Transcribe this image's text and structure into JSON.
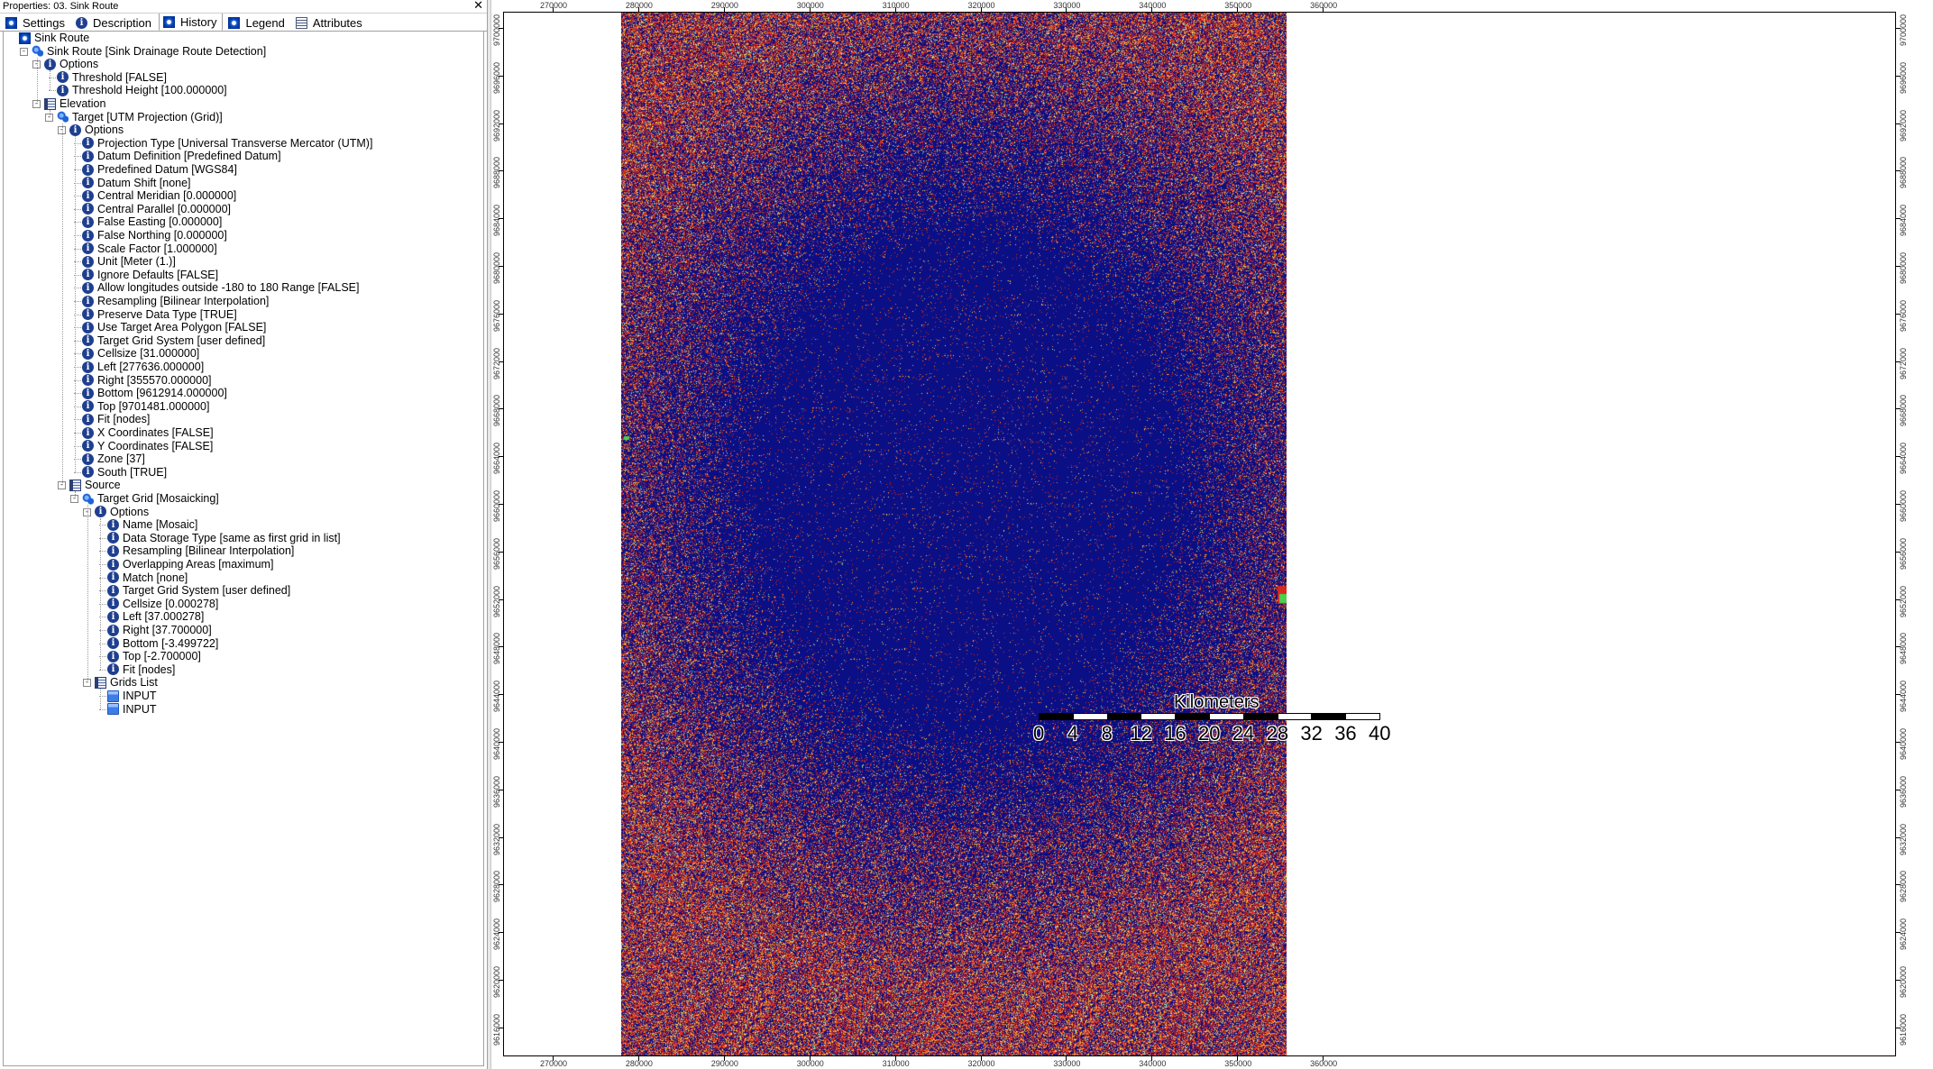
{
  "window": {
    "title": "Properties: 03. Sink Route",
    "close_glyph": "✕"
  },
  "tabs": [
    {
      "label": "Settings",
      "icon": "settings-icon"
    },
    {
      "label": "Description",
      "icon": "info-icon"
    },
    {
      "label": "History",
      "icon": "history-icon",
      "active": true
    },
    {
      "label": "Legend",
      "icon": "legend-icon"
    },
    {
      "label": "Attributes",
      "icon": "table-icon"
    }
  ],
  "tree": [
    {
      "label": "Sink Route",
      "icon": "root",
      "depth": 0
    },
    {
      "label": "Sink Route [Sink Drainage Route Detection]",
      "icon": "tool",
      "depth": 1,
      "expander": "-"
    },
    {
      "label": "Options",
      "icon": "info",
      "depth": 2,
      "expander": "-"
    },
    {
      "label": "Threshold [FALSE]",
      "icon": "info",
      "depth": 3
    },
    {
      "label": "Threshold Height [100.000000]",
      "icon": "info",
      "depth": 3
    },
    {
      "label": "Elevation",
      "icon": "grid",
      "depth": 2,
      "expander": "-"
    },
    {
      "label": "Target [UTM Projection (Grid)]",
      "icon": "tool",
      "depth": 3,
      "expander": "-"
    },
    {
      "label": "Options",
      "icon": "info",
      "depth": 4,
      "expander": "-"
    },
    {
      "label": "Projection Type [Universal Transverse Mercator (UTM)]",
      "icon": "info",
      "depth": 5
    },
    {
      "label": "Datum Definition [Predefined Datum]",
      "icon": "info",
      "depth": 5
    },
    {
      "label": "Predefined Datum [WGS84]",
      "icon": "info",
      "depth": 5
    },
    {
      "label": "Datum Shift [none]",
      "icon": "info",
      "depth": 5
    },
    {
      "label": "Central Meridian [0.000000]",
      "icon": "info",
      "depth": 5
    },
    {
      "label": "Central Parallel [0.000000]",
      "icon": "info",
      "depth": 5
    },
    {
      "label": "False Easting [0.000000]",
      "icon": "info",
      "depth": 5
    },
    {
      "label": "False Northing [0.000000]",
      "icon": "info",
      "depth": 5
    },
    {
      "label": "Scale Factor [1.000000]",
      "icon": "info",
      "depth": 5
    },
    {
      "label": "Unit [Meter (1.)]",
      "icon": "info",
      "depth": 5
    },
    {
      "label": "Ignore Defaults [FALSE]",
      "icon": "info",
      "depth": 5
    },
    {
      "label": "Allow longitudes outside -180 to 180 Range [FALSE]",
      "icon": "info",
      "depth": 5
    },
    {
      "label": "Resampling [Bilinear Interpolation]",
      "icon": "info",
      "depth": 5
    },
    {
      "label": "Preserve Data Type [TRUE]",
      "icon": "info",
      "depth": 5
    },
    {
      "label": "Use Target Area Polygon [FALSE]",
      "icon": "info",
      "depth": 5
    },
    {
      "label": "Target Grid System [user defined]",
      "icon": "info",
      "depth": 5
    },
    {
      "label": "Cellsize [31.000000]",
      "icon": "info",
      "depth": 5
    },
    {
      "label": "Left [277636.000000]",
      "icon": "info",
      "depth": 5
    },
    {
      "label": "Right [355570.000000]",
      "icon": "info",
      "depth": 5
    },
    {
      "label": "Bottom [9612914.000000]",
      "icon": "info",
      "depth": 5
    },
    {
      "label": "Top [9701481.000000]",
      "icon": "info",
      "depth": 5
    },
    {
      "label": "Fit [nodes]",
      "icon": "info",
      "depth": 5
    },
    {
      "label": "X Coordinates [FALSE]",
      "icon": "info",
      "depth": 5
    },
    {
      "label": "Y Coordinates [FALSE]",
      "icon": "info",
      "depth": 5
    },
    {
      "label": "Zone [37]",
      "icon": "info",
      "depth": 5
    },
    {
      "label": "South [TRUE]",
      "icon": "info",
      "depth": 5
    },
    {
      "label": "Source",
      "icon": "grid",
      "depth": 4,
      "expander": "-"
    },
    {
      "label": "Target Grid [Mosaicking]",
      "icon": "tool",
      "depth": 5,
      "expander": "-"
    },
    {
      "label": "Options",
      "icon": "info",
      "depth": 6,
      "expander": "-"
    },
    {
      "label": "Name [Mosaic]",
      "icon": "info",
      "depth": 7
    },
    {
      "label": "Data Storage Type [same as first grid in list]",
      "icon": "info",
      "depth": 7
    },
    {
      "label": "Resampling [Bilinear Interpolation]",
      "icon": "info",
      "depth": 7
    },
    {
      "label": "Overlapping Areas [maximum]",
      "icon": "info",
      "depth": 7
    },
    {
      "label": "Match [none]",
      "icon": "info",
      "depth": 7
    },
    {
      "label": "Target Grid System [user defined]",
      "icon": "info",
      "depth": 7
    },
    {
      "label": "Cellsize [0.000278]",
      "icon": "info",
      "depth": 7
    },
    {
      "label": "Left [37.000278]",
      "icon": "info",
      "depth": 7
    },
    {
      "label": "Right [37.700000]",
      "icon": "info",
      "depth": 7
    },
    {
      "label": "Bottom [-3.499722]",
      "icon": "info",
      "depth": 7
    },
    {
      "label": "Top [-2.700000]",
      "icon": "info",
      "depth": 7
    },
    {
      "label": "Fit [nodes]",
      "icon": "info",
      "depth": 7
    },
    {
      "label": "Grids List",
      "icon": "grid",
      "depth": 6,
      "expander": "-"
    },
    {
      "label": "INPUT",
      "icon": "folder",
      "depth": 7
    },
    {
      "label": "INPUT",
      "icon": "folder",
      "depth": 7
    }
  ],
  "map": {
    "x_ticks": [
      "270000",
      "280000",
      "290000",
      "300000",
      "310000",
      "320000",
      "330000",
      "340000",
      "350000",
      "360000"
    ],
    "y_ticks": [
      "9700000",
      "9696000",
      "9692000",
      "9688000",
      "9684000",
      "9680000",
      "9676000",
      "9672000",
      "9668000",
      "9664000",
      "9660000",
      "9656000",
      "9652000",
      "9648000",
      "9644000",
      "9640000",
      "9636000",
      "9632000",
      "9628000",
      "9624000",
      "9620000",
      "9616000"
    ],
    "raster_colors": {
      "background": "#0a0f86",
      "red": "#d62a1e",
      "orange": "#ef8a2a",
      "yellow": "#f6e45a",
      "cyan": "#5ee3e8",
      "green": "#49d14c"
    },
    "scalebar": {
      "title": "Kilometers",
      "labels": [
        "0",
        "4",
        "8",
        "12",
        "16",
        "20",
        "24",
        "28",
        "32",
        "36",
        "40"
      ]
    }
  }
}
